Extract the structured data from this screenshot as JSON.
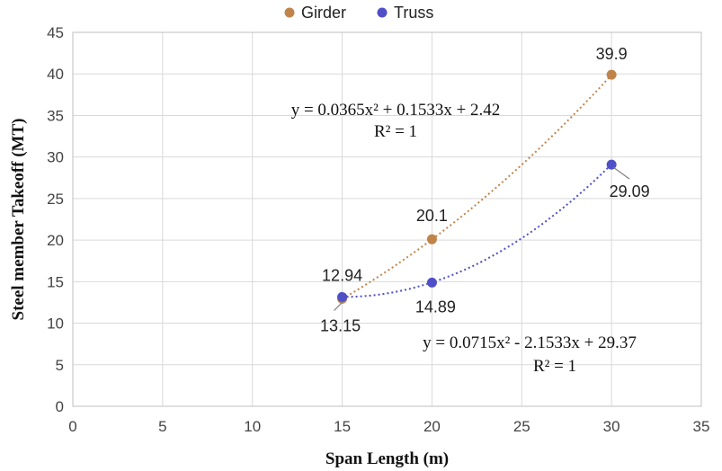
{
  "chart_data": {
    "type": "scatter",
    "xlabel": "Span Length  (m)",
    "ylabel": "Steel member Takeoff (MT)",
    "xlim": [
      0,
      35
    ],
    "ylim": [
      0,
      45
    ],
    "xticks": [
      0,
      5,
      10,
      15,
      20,
      25,
      30,
      35
    ],
    "yticks": [
      0,
      5,
      10,
      15,
      20,
      25,
      30,
      35,
      40,
      45
    ],
    "grid": true,
    "legend_position": "top",
    "series": [
      {
        "name": "Girder",
        "color": "#C0844A",
        "x": [
          15,
          20,
          30
        ],
        "y": [
          12.94,
          20.1,
          39.9
        ],
        "labels": [
          "12.94",
          "20.1",
          "39.9"
        ],
        "trendline": {
          "type": "polynomial",
          "coefficients": [
            0.0365,
            0.1533,
            2.42
          ],
          "equation": "y = 0.0365x² + 0.1533x + 2.42",
          "r_squared": "R² = 1"
        }
      },
      {
        "name": "Truss",
        "color": "#4F4FC8",
        "x": [
          15,
          20,
          30
        ],
        "y": [
          13.15,
          14.89,
          29.09
        ],
        "labels": [
          "13.15",
          "14.89",
          "29.09"
        ],
        "trendline": {
          "type": "polynomial",
          "coefficients": [
            0.0715,
            -2.1533,
            29.37
          ],
          "equation": "y = 0.0715x² - 2.1533x + 29.37",
          "r_squared": "R² = 1"
        }
      }
    ]
  }
}
